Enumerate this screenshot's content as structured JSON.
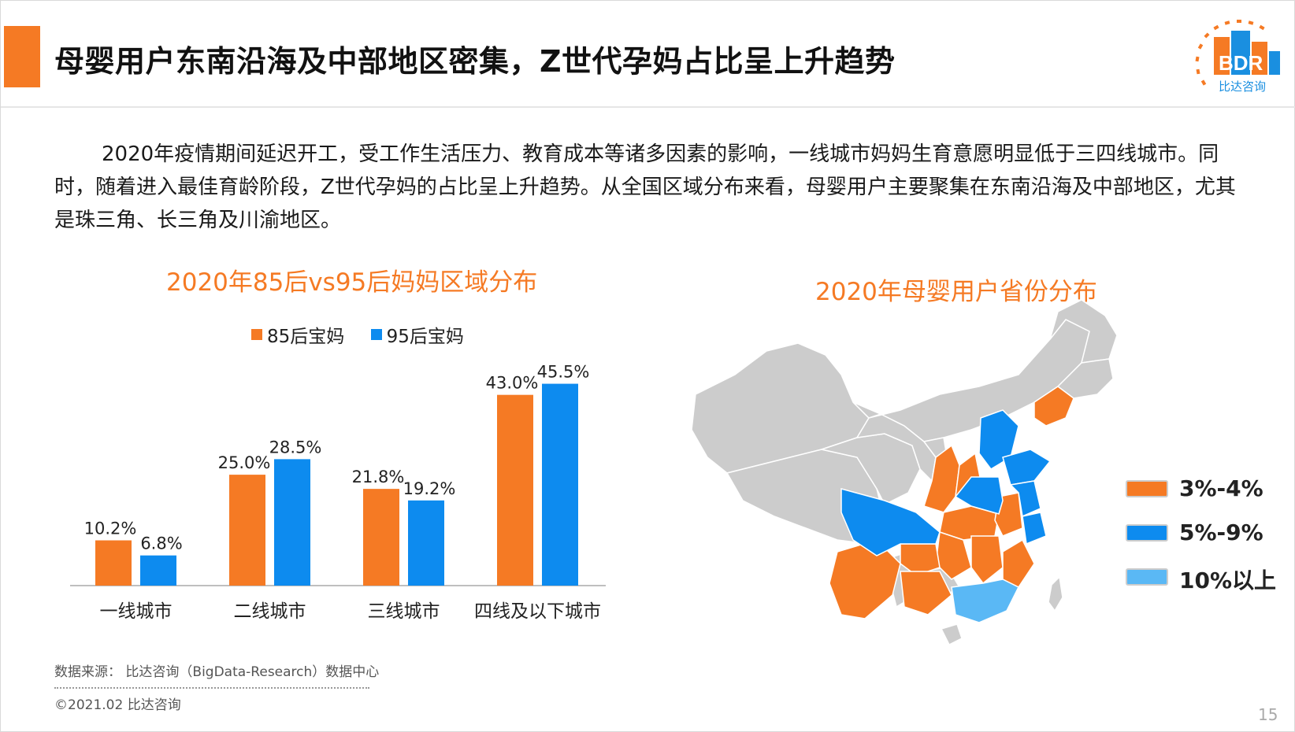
{
  "header": {
    "title": "母婴用户东南沿海及中部地区密集，Z世代孕妈占比呈上升趋势",
    "logo_text": "BDR",
    "logo_subtext": "比达咨询"
  },
  "body_text": "2020年疫情期间延迟开工，受工作生活压力、教育成本等诸多因素的影响，一线城市妈妈生育意愿明显低于三四线城市。同时，随着进入最佳育龄阶段，Z世代孕妈的占比呈上升趋势。从全国区域分布来看，母婴用户主要聚集在东南沿海及中部地区，尤其是珠三角、长三角及川渝地区。",
  "chart_data": [
    {
      "type": "bar",
      "title": "2020年85后vs95后妈妈区域分布",
      "categories": [
        "一线城市",
        "二线城市",
        "三线城市",
        "四线及以下城市"
      ],
      "series": [
        {
          "name": "85后宝妈",
          "values": [
            10.2,
            25.0,
            21.8,
            43.0
          ],
          "labels": [
            "10.2%",
            "25.0%",
            "21.8%",
            "43.0%"
          ],
          "color": "#f57a24"
        },
        {
          "name": "95后宝妈",
          "values": [
            6.8,
            28.5,
            19.2,
            45.5
          ],
          "labels": [
            "6.8%",
            "28.5%",
            "19.2%",
            "45.5%"
          ],
          "color": "#0d8bef"
        }
      ],
      "ylim": [
        0,
        50
      ],
      "grid": false,
      "legend": "top"
    },
    {
      "type": "choropleth",
      "title": "2020年母婴用户省份分布",
      "legend": "right",
      "classes": [
        {
          "label": "3%-4%",
          "color": "#f57a24"
        },
        {
          "label": "5%-9%",
          "color": "#0d8bef"
        },
        {
          "label": "10%以上",
          "color": "#5ab8f5"
        }
      ],
      "base_color": "#cccccc"
    }
  ],
  "footer": {
    "source": "数据来源： 比达咨询（BigData-Research）数据中心",
    "copyright": "©2021.02 比达咨询",
    "page_number": "15"
  }
}
